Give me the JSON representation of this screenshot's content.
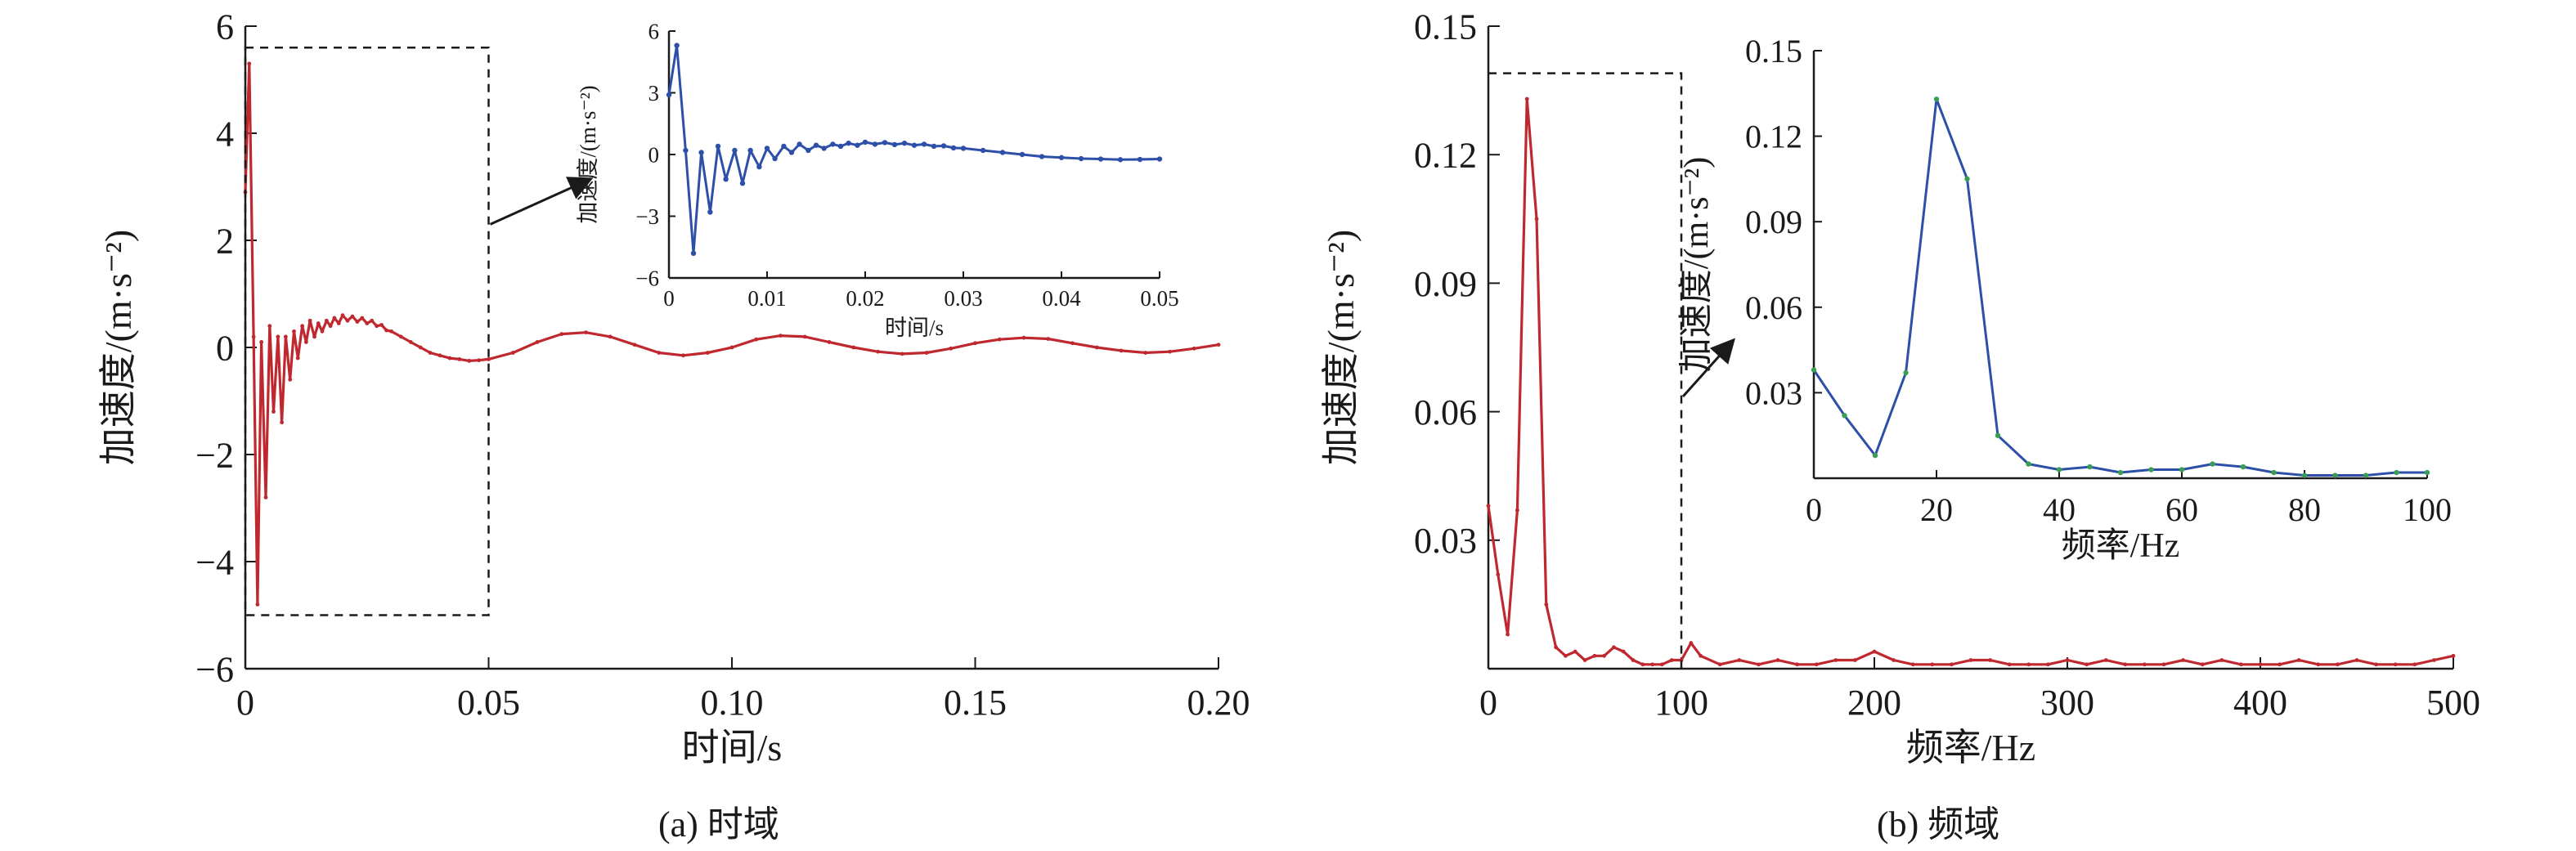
{
  "chart_data": [
    {
      "id": "time",
      "type": "line",
      "caption": "(a) 时域",
      "xlabel": "时间/s",
      "ylabel": "加速度/(m·s⁻²)",
      "xlim": [
        0,
        0.2
      ],
      "ylim": [
        -6,
        6
      ],
      "xticks": [
        "0",
        "0.05",
        "0.10",
        "0.15",
        "0.20"
      ],
      "yticks": [
        "−6",
        "−4",
        "−2",
        "0",
        "2",
        "4",
        "6"
      ],
      "series": [
        {
          "color": "#c0282f",
          "x": [
            0,
            0.0008,
            0.0017,
            0.0025,
            0.0033,
            0.0042,
            0.005,
            0.0058,
            0.0067,
            0.0075,
            0.0083,
            0.0092,
            0.01,
            0.0108,
            0.0117,
            0.0125,
            0.0133,
            0.0142,
            0.015,
            0.0158,
            0.0167,
            0.0175,
            0.0183,
            0.0192,
            0.02,
            0.021,
            0.022,
            0.023,
            0.024,
            0.025,
            0.026,
            0.027,
            0.028,
            0.029,
            0.03,
            0.032,
            0.034,
            0.036,
            0.038,
            0.04,
            0.042,
            0.044,
            0.046,
            0.048,
            0.05,
            0.055,
            0.06,
            0.065,
            0.07,
            0.075,
            0.08,
            0.085,
            0.09,
            0.095,
            0.1,
            0.105,
            0.11,
            0.115,
            0.12,
            0.125,
            0.13,
            0.135,
            0.14,
            0.145,
            0.15,
            0.155,
            0.16,
            0.165,
            0.17,
            0.175,
            0.18,
            0.185,
            0.19,
            0.195,
            0.2
          ],
          "y": [
            2.9,
            5.3,
            0.2,
            -4.8,
            0.1,
            -2.8,
            0.4,
            -1.2,
            0.2,
            -1.4,
            0.2,
            -0.6,
            0.3,
            -0.2,
            0.4,
            0.1,
            0.5,
            0.2,
            0.45,
            0.3,
            0.5,
            0.4,
            0.55,
            0.45,
            0.6,
            0.5,
            0.58,
            0.48,
            0.55,
            0.45,
            0.5,
            0.4,
            0.42,
            0.32,
            0.3,
            0.2,
            0.1,
            0.0,
            -0.1,
            -0.15,
            -0.2,
            -0.22,
            -0.25,
            -0.24,
            -0.22,
            -0.1,
            0.1,
            0.25,
            0.28,
            0.2,
            0.05,
            -0.1,
            -0.15,
            -0.1,
            0.0,
            0.15,
            0.22,
            0.2,
            0.1,
            0.0,
            -0.08,
            -0.12,
            -0.1,
            -0.02,
            0.08,
            0.15,
            0.18,
            0.16,
            0.08,
            0.0,
            -0.06,
            -0.1,
            -0.08,
            -0.02,
            0.05
          ]
        }
      ]
    },
    {
      "id": "time_inset",
      "type": "line",
      "xlabel": "时间/s",
      "ylabel": "加速度/(m·s⁻²)",
      "xlim": [
        0,
        0.05
      ],
      "ylim": [
        -6,
        6
      ],
      "xticks": [
        "0",
        "0.01",
        "0.02",
        "0.03",
        "0.04",
        "0.05"
      ],
      "yticks": [
        "−6",
        "−3",
        "0",
        "3",
        "6"
      ],
      "series": [
        {
          "color": "#2d4fa8",
          "x": [
            0,
            0.0008,
            0.0017,
            0.0025,
            0.0033,
            0.0042,
            0.005,
            0.0058,
            0.0067,
            0.0075,
            0.0083,
            0.0092,
            0.01,
            0.0108,
            0.0117,
            0.0125,
            0.0133,
            0.0142,
            0.015,
            0.0158,
            0.0167,
            0.0175,
            0.0183,
            0.0192,
            0.02,
            0.021,
            0.022,
            0.023,
            0.024,
            0.025,
            0.026,
            0.027,
            0.028,
            0.029,
            0.03,
            0.032,
            0.034,
            0.036,
            0.038,
            0.04,
            0.042,
            0.044,
            0.046,
            0.048,
            0.05
          ],
          "y": [
            2.9,
            5.3,
            0.2,
            -4.8,
            0.1,
            -2.8,
            0.4,
            -1.2,
            0.2,
            -1.4,
            0.2,
            -0.6,
            0.3,
            -0.2,
            0.4,
            0.1,
            0.5,
            0.2,
            0.45,
            0.3,
            0.5,
            0.4,
            0.55,
            0.45,
            0.6,
            0.5,
            0.58,
            0.48,
            0.55,
            0.45,
            0.5,
            0.4,
            0.42,
            0.32,
            0.3,
            0.2,
            0.1,
            0.0,
            -0.1,
            -0.15,
            -0.2,
            -0.22,
            -0.25,
            -0.24,
            -0.22
          ]
        }
      ]
    },
    {
      "id": "freq",
      "type": "line",
      "caption": "(b) 频域",
      "xlabel": "频率/Hz",
      "ylabel": "加速度/(m·s⁻²)",
      "xlim": [
        0,
        500
      ],
      "ylim": [
        0,
        0.15
      ],
      "xticks": [
        "0",
        "100",
        "200",
        "300",
        "400",
        "500"
      ],
      "yticks": [
        "0.03",
        "0.06",
        "0.09",
        "0.12",
        "0.15"
      ],
      "series": [
        {
          "color": "#c0282f",
          "x": [
            0,
            5,
            10,
            15,
            20,
            25,
            30,
            35,
            40,
            45,
            50,
            55,
            60,
            65,
            70,
            75,
            80,
            85,
            90,
            95,
            100,
            105,
            110,
            120,
            130,
            140,
            150,
            160,
            170,
            180,
            190,
            200,
            210,
            220,
            230,
            240,
            250,
            260,
            270,
            280,
            290,
            300,
            310,
            320,
            330,
            340,
            350,
            360,
            370,
            380,
            390,
            400,
            410,
            420,
            430,
            440,
            450,
            460,
            470,
            480,
            490,
            500
          ],
          "y": [
            0.038,
            0.022,
            0.008,
            0.037,
            0.133,
            0.105,
            0.015,
            0.005,
            0.003,
            0.004,
            0.002,
            0.003,
            0.003,
            0.005,
            0.004,
            0.002,
            0.001,
            0.001,
            0.001,
            0.002,
            0.002,
            0.006,
            0.003,
            0.001,
            0.002,
            0.001,
            0.002,
            0.001,
            0.001,
            0.002,
            0.002,
            0.004,
            0.002,
            0.001,
            0.001,
            0.001,
            0.002,
            0.002,
            0.001,
            0.001,
            0.001,
            0.002,
            0.001,
            0.002,
            0.001,
            0.001,
            0.001,
            0.002,
            0.001,
            0.002,
            0.001,
            0.001,
            0.001,
            0.002,
            0.001,
            0.001,
            0.002,
            0.001,
            0.001,
            0.001,
            0.002,
            0.003
          ]
        }
      ]
    },
    {
      "id": "freq_inset",
      "type": "line",
      "xlabel": "频率/Hz",
      "ylabel": "加速度/(m·s⁻²)",
      "xlim": [
        0,
        100
      ],
      "ylim": [
        0,
        0.15
      ],
      "xticks": [
        "0",
        "20",
        "40",
        "60",
        "80",
        "100"
      ],
      "yticks": [
        "0.03",
        "0.06",
        "0.09",
        "0.12",
        "0.15"
      ],
      "series": [
        {
          "color": "#2d4fa8",
          "marker_color": "#3a9e52",
          "x": [
            0,
            5,
            10,
            15,
            20,
            25,
            30,
            35,
            40,
            45,
            50,
            55,
            60,
            65,
            70,
            75,
            80,
            85,
            90,
            95,
            100
          ],
          "y": [
            0.038,
            0.022,
            0.008,
            0.037,
            0.133,
            0.105,
            0.015,
            0.005,
            0.003,
            0.004,
            0.002,
            0.003,
            0.003,
            0.005,
            0.004,
            0.002,
            0.001,
            0.001,
            0.001,
            0.002,
            0.002
          ]
        }
      ]
    }
  ]
}
